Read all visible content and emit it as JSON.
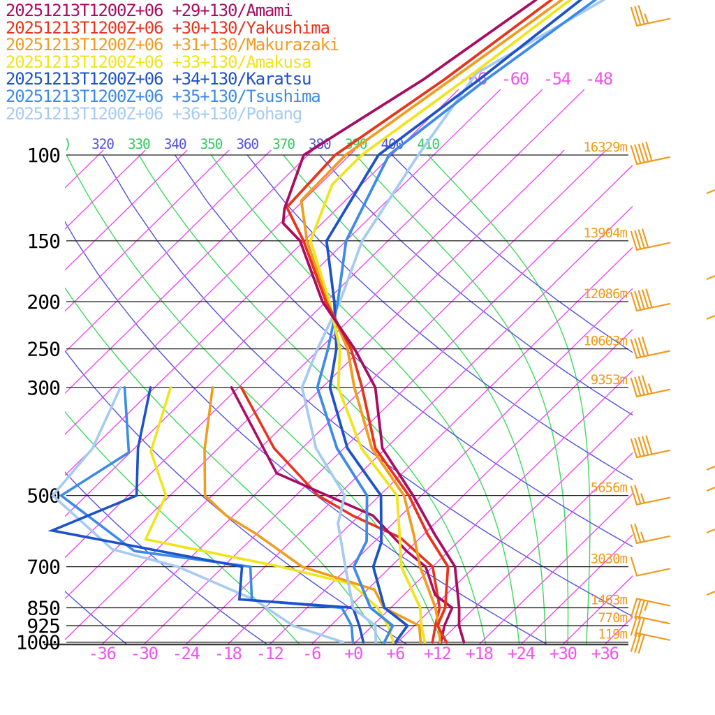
{
  "chart_data": {
    "type": "line",
    "subtype": "skew-t-log-p-sounding",
    "legend": {
      "entries": [
        {
          "text": "20251213T1200Z+06 +29+130/Amami",
          "station": "Amami",
          "color": "#a80d62"
        },
        {
          "text": "20251213T1200Z+06 +30+130/Yakushima",
          "station": "Yakushima",
          "color": "#e8341c"
        },
        {
          "text": "20251213T1200Z+06 +31+130/Makurazaki",
          "station": "Makurazaki",
          "color": "#f29c1f"
        },
        {
          "text": "20251213T1200Z+06 +33+130/Amakusa",
          "station": "Amakusa",
          "color": "#f0e41c"
        },
        {
          "text": "20251213T1200Z+06 +34+130/Karatsu",
          "station": "Karatsu",
          "color": "#1e52c8"
        },
        {
          "text": "20251213T1200Z+06 +35+130/Tsushima",
          "station": "Tsushima",
          "color": "#3c8be8"
        },
        {
          "text": "20251213T1200Z+06 +36+130/Pohang",
          "station": "Pohang",
          "color": "#a6cbf2"
        }
      ]
    },
    "colors": {
      "isotherm": "#f049f0",
      "isotherm_label": "#ee55ee",
      "dry_adiabat": "#5252e0",
      "moist_adiabat": "#3cd95c",
      "theta_blue": "#5252e0",
      "theta_green": "#2ecc5e",
      "pressure_line": "#1c1c1c",
      "axis": "#3a3a3a",
      "pressure_label": "#000000",
      "height_label": "#f09a1c",
      "barb": "#f09a1c",
      "bottom_label": "#ee55ee"
    },
    "pressure_axis": {
      "levels": [
        {
          "p": 100,
          "label": "100",
          "height_label": "16329m"
        },
        {
          "p": 150,
          "label": "150",
          "height_label": "13904m"
        },
        {
          "p": 200,
          "label": "200",
          "height_label": "12086m"
        },
        {
          "p": 250,
          "label": "250",
          "height_label": "10603m"
        },
        {
          "p": 300,
          "label": "300",
          "height_label": "9353m"
        },
        {
          "p": 500,
          "label": "500",
          "height_label": "5656m"
        },
        {
          "p": 700,
          "label": "700",
          "height_label": "3030m"
        },
        {
          "p": 850,
          "label": "850",
          "height_label": "1463m"
        },
        {
          "p": 925,
          "label": "925",
          "height_label": "770m"
        },
        {
          "p": 1000,
          "label": "1000",
          "height_label": "119m"
        }
      ]
    },
    "temperature_axis": {
      "tick_labels": [
        "-36",
        "-30",
        "-24",
        "-18",
        "-12",
        "-6",
        "+0",
        "+6",
        "+12",
        "+18",
        "+24",
        "+30",
        "+36"
      ],
      "tick_values": [
        -36,
        -30,
        -24,
        -18,
        -12,
        -6,
        0,
        6,
        12,
        18,
        24,
        30,
        36
      ],
      "unit": "C"
    },
    "isotherms": {
      "min": -114,
      "max": 36,
      "step": 6,
      "upper_labels": [
        {
          "value": -66,
          "label": "-66"
        },
        {
          "value": -60,
          "label": "-60"
        },
        {
          "value": -54,
          "label": "-54"
        },
        {
          "value": -48,
          "label": "-48"
        }
      ]
    },
    "dry_adiabats": {
      "theta_K": [
        240,
        260,
        280,
        300,
        320,
        340,
        360,
        380,
        400
      ]
    },
    "moist_adiabats": {
      "theta_e_K": [
        270,
        290,
        310,
        330,
        350,
        370,
        390,
        410
      ]
    },
    "top_theta_labels": {
      "prefix_artifact": ")",
      "items": [
        {
          "label": "320",
          "value": 320,
          "color": "blue"
        },
        {
          "label": "330",
          "value": 330,
          "color": "green"
        },
        {
          "label": "340",
          "value": 340,
          "color": "blue"
        },
        {
          "label": "350",
          "value": 350,
          "color": "green"
        },
        {
          "label": "360",
          "value": 360,
          "color": "blue"
        },
        {
          "label": "370",
          "value": 370,
          "color": "green"
        },
        {
          "label": "380",
          "value": 380,
          "color": "blue"
        },
        {
          "label": "390",
          "value": 390,
          "color": "green"
        },
        {
          "label": "400",
          "value": 400,
          "color": "blue"
        },
        {
          "label": "410",
          "value": 410,
          "color": "green"
        }
      ]
    },
    "stations": [
      {
        "name": "Pohang",
        "color": "#a6cbf2",
        "temperature_profile_p_degc": [
          [
            48,
            -58.3
          ],
          [
            68,
            -65.8
          ],
          [
            100,
            -62.2
          ],
          [
            150,
            -57.7
          ],
          [
            200,
            -52.0
          ],
          [
            250,
            -48.3
          ],
          [
            300,
            -44.9
          ],
          [
            400,
            -34.0
          ],
          [
            500,
            -23.0
          ],
          [
            570,
            -19.9
          ],
          [
            700,
            -12.5
          ],
          [
            850,
            -5.4
          ],
          [
            925,
            0.4
          ],
          [
            1000,
            2.9
          ]
        ],
        "dewpoint_profile_p_degc": [
          [
            300,
            -70.9
          ],
          [
            400,
            -66.0
          ],
          [
            500,
            -64.8
          ],
          [
            645,
            -48.4
          ],
          [
            700,
            -36.5
          ],
          [
            820,
            -20.5
          ],
          [
            925,
            -11.4
          ],
          [
            1000,
            -1.8
          ]
        ]
      },
      {
        "name": "Tsushima",
        "color": "#3c8be8",
        "temperature_profile_p_degc": [
          [
            48,
            -59.5
          ],
          [
            70,
            -63.5
          ],
          [
            100,
            -66.4
          ],
          [
            150,
            -60.0
          ],
          [
            200,
            -52.3
          ],
          [
            250,
            -46.8
          ],
          [
            300,
            -42.7
          ],
          [
            400,
            -31.0
          ],
          [
            500,
            -19.8
          ],
          [
            620,
            -13.2
          ],
          [
            700,
            -11.3
          ],
          [
            850,
            -2.9
          ],
          [
            925,
            2.9
          ],
          [
            1000,
            4.1
          ]
        ],
        "dewpoint_profile_p_degc": [
          [
            300,
            -70.3
          ],
          [
            408,
            -60.2
          ],
          [
            500,
            -63.6
          ],
          [
            650,
            -45.0
          ],
          [
            700,
            -26.1
          ],
          [
            820,
            -21.0
          ],
          [
            850,
            -7.0
          ],
          [
            925,
            -3.0
          ],
          [
            1000,
            -0.4
          ]
        ]
      },
      {
        "name": "Karatsu",
        "color": "#1e52c8",
        "temperature_profile_p_degc": [
          [
            48,
            -61.6
          ],
          [
            70,
            -64.5
          ],
          [
            100,
            -67.9
          ],
          [
            150,
            -62.8
          ],
          [
            200,
            -52.8
          ],
          [
            250,
            -45.6
          ],
          [
            300,
            -40.9
          ],
          [
            400,
            -29.5
          ],
          [
            500,
            -17.8
          ],
          [
            624,
            -10.9
          ],
          [
            700,
            -8.5
          ],
          [
            850,
            -0.9
          ],
          [
            925,
            5.0
          ],
          [
            1000,
            5.7
          ]
        ],
        "dewpoint_profile_p_degc": [
          [
            300,
            -66.6
          ],
          [
            400,
            -59.5
          ],
          [
            500,
            -52.8
          ],
          [
            590,
            -59.8
          ],
          [
            700,
            -27.3
          ],
          [
            817,
            -22.9
          ],
          [
            850,
            -5.4
          ],
          [
            925,
            -1.9
          ],
          [
            1000,
            1.1
          ]
        ]
      },
      {
        "name": "Amakusa",
        "color": "#f0e41c",
        "temperature_profile_p_degc": [
          [
            48,
            -63.1
          ],
          [
            70,
            -66.5
          ],
          [
            100,
            -70.3
          ],
          [
            115,
            -70.2
          ],
          [
            150,
            -65.1
          ],
          [
            200,
            -53.5
          ],
          [
            250,
            -45.1
          ],
          [
            300,
            -39.7
          ],
          [
            400,
            -27.5
          ],
          [
            500,
            -15.5
          ],
          [
            600,
            -9.5
          ],
          [
            700,
            -4.5
          ],
          [
            850,
            4.2
          ],
          [
            925,
            7.0
          ],
          [
            1000,
            9.9
          ]
        ],
        "dewpoint_profile_p_degc": [
          [
            300,
            -63.7
          ],
          [
            406,
            -57.2
          ],
          [
            500,
            -48.6
          ],
          [
            615,
            -45.1
          ],
          [
            700,
            -21.8
          ],
          [
            760,
            -9.0
          ],
          [
            850,
            -1.9
          ],
          [
            925,
            2.2
          ],
          [
            1000,
            5.4
          ]
        ]
      },
      {
        "name": "Makurazaki",
        "color": "#f29c1f",
        "temperature_profile_p_degc": [
          [
            48,
            -64.3
          ],
          [
            70,
            -68.5
          ],
          [
            100,
            -72.6
          ],
          [
            124,
            -72.3
          ],
          [
            150,
            -65.6
          ],
          [
            200,
            -53.8
          ],
          [
            250,
            -44.0
          ],
          [
            300,
            -37.4
          ],
          [
            400,
            -26.0
          ],
          [
            500,
            -14.5
          ],
          [
            600,
            -7.5
          ],
          [
            700,
            -1.8
          ],
          [
            850,
            6.4
          ],
          [
            925,
            9.5
          ],
          [
            1000,
            12.1
          ]
        ],
        "dewpoint_profile_p_degc": [
          [
            300,
            -57.7
          ],
          [
            402,
            -49.8
          ],
          [
            500,
            -43.0
          ],
          [
            550,
            -37.0
          ],
          [
            600,
            -30.0
          ],
          [
            700,
            -18.7
          ],
          [
            780,
            -5.0
          ],
          [
            850,
            -1.0
          ],
          [
            925,
            6.7
          ],
          [
            1000,
            9.3
          ]
        ]
      },
      {
        "name": "Yakushima",
        "color": "#e8341c",
        "temperature_profile_p_degc": [
          [
            48,
            -65.8
          ],
          [
            70,
            -69.5
          ],
          [
            100,
            -74.1
          ],
          [
            128,
            -73.4
          ],
          [
            150,
            -66.1
          ],
          [
            200,
            -54.0
          ],
          [
            250,
            -43.5
          ],
          [
            300,
            -36.3
          ],
          [
            400,
            -25.5
          ],
          [
            500,
            -13.8
          ],
          [
            600,
            -5.5
          ],
          [
            700,
            2.2
          ],
          [
            850,
            7.8
          ],
          [
            925,
            9.3
          ],
          [
            1000,
            13.0
          ]
        ],
        "dewpoint_profile_p_degc": [
          [
            300,
            -53.6
          ],
          [
            400,
            -40.0
          ],
          [
            500,
            -26.8
          ],
          [
            550,
            -18.9
          ],
          [
            610,
            -8.9
          ],
          [
            700,
            0.0
          ],
          [
            850,
            7.0
          ],
          [
            925,
            9.0
          ],
          [
            1000,
            11.0
          ]
        ]
      },
      {
        "name": "Amami",
        "color": "#a80d62",
        "temperature_profile_p_degc": [
          [
            48,
            -68.0
          ],
          [
            70,
            -72.5
          ],
          [
            100,
            -78.6
          ],
          [
            129,
            -73.5
          ],
          [
            138,
            -71.6
          ],
          [
            150,
            -66.6
          ],
          [
            200,
            -54.5
          ],
          [
            250,
            -43.0
          ],
          [
            300,
            -34.4
          ],
          [
            400,
            -24.5
          ],
          [
            500,
            -13.2
          ],
          [
            600,
            -4.5
          ],
          [
            700,
            3.2
          ],
          [
            850,
            9.8
          ],
          [
            925,
            12.4
          ],
          [
            1000,
            15.5
          ]
        ],
        "dewpoint_profile_p_degc": [
          [
            300,
            -55.0
          ],
          [
            450,
            -36.0
          ],
          [
            550,
            -16.0
          ],
          [
            650,
            -6.0
          ],
          [
            700,
            -1.0
          ],
          [
            800,
            4.5
          ],
          [
            850,
            8.8
          ],
          [
            925,
            10.3
          ],
          [
            1000,
            12.2
          ]
        ]
      }
    ],
    "wind_barbs": [
      {
        "p": 52,
        "feathers": 3,
        "half": 1,
        "dir": "up"
      },
      {
        "p": 100,
        "feathers": 5,
        "half": 0,
        "dir": "up"
      },
      {
        "p": 150,
        "feathers": 4,
        "half": 0,
        "dir": "up"
      },
      {
        "p": 200,
        "feathers": 5,
        "half": 0,
        "dir": "up"
      },
      {
        "p": 250,
        "feathers": 4,
        "half": 0,
        "dir": "up"
      },
      {
        "p": 300,
        "feathers": 4,
        "half": 1,
        "dir": "up"
      },
      {
        "p": 400,
        "feathers": 5,
        "half": 0,
        "dir": "up"
      },
      {
        "p": 500,
        "feathers": 2,
        "half": 1,
        "dir": "up"
      },
      {
        "p": 600,
        "feathers": 2,
        "half": 1,
        "dir": "up"
      },
      {
        "p": 700,
        "feathers": 1,
        "half": 0,
        "dir": "up"
      },
      {
        "p": 850,
        "feathers": 3,
        "half": 1,
        "dir": "down"
      },
      {
        "p": 925,
        "feathers": 3,
        "half": 0,
        "dir": "down"
      },
      {
        "p": 1000,
        "feathers": 3,
        "half": 0,
        "dir": "down"
      }
    ],
    "right_edge_barb_fragments_y": [
      277,
      400,
      457,
      673,
      703,
      763,
      852
    ]
  }
}
